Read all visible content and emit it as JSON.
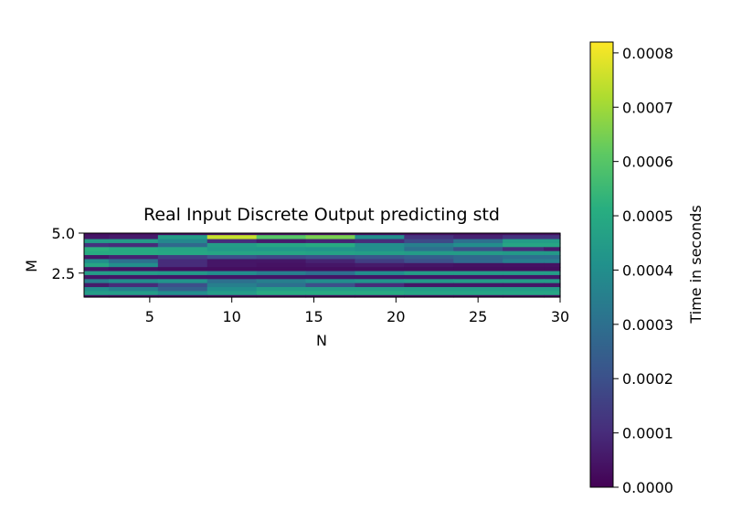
{
  "chart_data": {
    "type": "heatmap",
    "title": "Real Input Discrete Output predicting std",
    "xlabel": "N",
    "ylabel": "M",
    "xlim": [
      1,
      30
    ],
    "ylim": [
      1,
      5
    ],
    "xticks": [
      5,
      10,
      15,
      20,
      25,
      30
    ],
    "xtick_labels": [
      "5",
      "10",
      "15",
      "20",
      "25",
      "30"
    ],
    "yticks": [
      2.5,
      5.0
    ],
    "ytick_labels": [
      "2.5",
      "5.0"
    ],
    "colormap": "viridis",
    "colorbar": {
      "label": "Time in seconds",
      "range": [
        0,
        0.00082
      ],
      "ticks": [
        0,
        0.0001,
        0.0002,
        0.0003,
        0.0004,
        0.0005,
        0.0006,
        0.0007,
        0.0008
      ],
      "tick_labels": [
        "0.0000",
        "0.0001",
        "0.0002",
        "0.0003",
        "0.0004",
        "0.0005",
        "0.0006",
        "0.0007",
        "0.0008"
      ]
    },
    "x": [
      1,
      4,
      7,
      10,
      13,
      16,
      19,
      22,
      25,
      28,
      30
    ],
    "y": [
      5.0,
      4.75,
      4.5,
      4.25,
      4.0,
      3.75,
      3.5,
      3.25,
      3.0,
      2.75,
      2.5,
      2.25,
      2.0,
      1.75,
      1.5,
      1.25,
      1.0
    ],
    "values": [
      [
        3e-05,
        3e-05,
        3e-05,
        3e-05,
        3e-05,
        3e-05,
        3e-05,
        3e-05,
        3e-05,
        3e-05,
        3e-05
      ],
      [
        5e-05,
        6e-05,
        0.00045,
        0.00075,
        0.0006,
        0.00065,
        0.0004,
        0.00012,
        8e-05,
        0.00012,
        0.00012
      ],
      [
        0.00045,
        0.00045,
        0.00038,
        0.0001,
        6e-05,
        8e-05,
        0.0001,
        0.00018,
        0.0003,
        0.00045,
        0.00045
      ],
      [
        0.00012,
        0.0001,
        0.00028,
        0.00045,
        0.00048,
        0.0005,
        0.0004,
        0.00035,
        0.0004,
        0.00048,
        0.00048
      ],
      [
        0.00052,
        0.0005,
        0.00048,
        0.00044,
        0.00043,
        0.00042,
        0.0004,
        0.0003,
        0.0002,
        0.0001,
        6e-05
      ],
      [
        0.0005,
        0.0005,
        0.00049,
        0.00048,
        0.00048,
        0.00047,
        0.00046,
        0.00045,
        0.00045,
        0.00044,
        0.00044
      ],
      [
        5e-05,
        8e-05,
        0.00015,
        0.0002,
        0.00018,
        0.0002,
        0.00022,
        0.00025,
        0.00028,
        0.0003,
        0.0003
      ],
      [
        0.0004,
        0.0003,
        0.0001,
        5e-05,
        5e-05,
        8e-05,
        0.00015,
        0.0002,
        0.00028,
        0.00035,
        0.00035
      ],
      [
        0.00048,
        0.0004,
        0.0001,
        5e-05,
        4e-05,
        5e-05,
        6e-05,
        5e-05,
        4e-05,
        4e-05,
        4e-05
      ],
      [
        5e-05,
        4e-05,
        3e-05,
        3e-05,
        3e-05,
        3e-05,
        3e-05,
        3e-05,
        3e-05,
        3e-05,
        3e-05
      ],
      [
        0.00045,
        0.00045,
        0.00044,
        0.0004,
        0.00035,
        0.0003,
        0.0004,
        0.00045,
        0.00045,
        0.00045,
        0.00045
      ],
      [
        5e-05,
        5e-05,
        5e-05,
        5e-05,
        5e-05,
        5e-05,
        5e-05,
        5e-05,
        5e-05,
        5e-05,
        5e-05
      ],
      [
        0.00035,
        0.0004,
        0.00042,
        0.0003,
        0.00035,
        0.0004,
        0.00042,
        0.00044,
        0.00045,
        0.00045,
        0.00045
      ],
      [
        6e-05,
        0.0001,
        0.0002,
        0.00035,
        0.0003,
        0.0002,
        0.0001,
        5e-05,
        5e-05,
        5e-05,
        5e-05
      ],
      [
        0.0004,
        0.00035,
        0.00025,
        0.0004,
        0.00045,
        0.00045,
        0.00045,
        0.00045,
        0.00045,
        0.00045,
        0.00045
      ],
      [
        0.00045,
        0.00045,
        0.0004,
        0.00045,
        0.0005,
        0.0005,
        0.0005,
        0.00048,
        0.00048,
        0.00048,
        0.00048
      ],
      [
        3e-05,
        3e-05,
        3e-05,
        3e-05,
        3e-05,
        3e-05,
        3e-05,
        3e-05,
        3e-05,
        3e-05,
        3e-05
      ]
    ]
  }
}
